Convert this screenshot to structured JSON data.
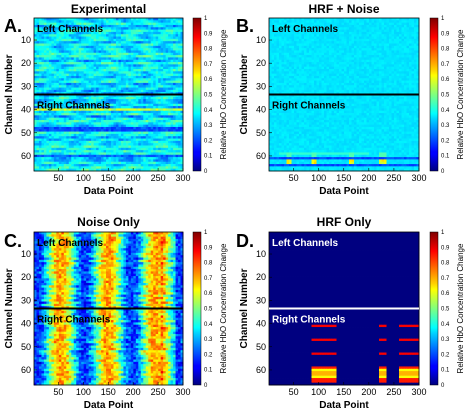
{
  "chart_data": [
    {
      "panel": "A.",
      "title": "Experimental",
      "type": "heatmap",
      "xlabel": "Data Point",
      "ylabel": "Channel Number",
      "xticks": [
        50,
        100,
        150,
        200,
        250,
        300
      ],
      "yticks": [
        10,
        20,
        30,
        40,
        50,
        60
      ],
      "xlim": [
        1,
        300
      ],
      "ylim": [
        1,
        66
      ],
      "colorbar": {
        "label": "Relative HbO Concentration Change",
        "ticks": [
          "0",
          "0.1",
          "0.2",
          "0.3",
          "0.4",
          "0.5",
          "0.6",
          "0.7",
          "0.8",
          "0.9",
          "1"
        ],
        "range": [
          0,
          1
        ]
      },
      "region_labels": [
        "Left Channels",
        "Right Channels"
      ],
      "divider_channel": 33.5,
      "divider_color": "#000000",
      "label_color": "#000000",
      "pattern": "mostly cyan-blue (~0.3-0.4) with horizontal streaks; yellow streak near channel 40; blue streaks near channels 48 and 60"
    },
    {
      "panel": "B.",
      "title": "HRF + Noise",
      "type": "heatmap",
      "xlabel": "Data Point",
      "ylabel": "Channel Number",
      "xticks": [
        50,
        100,
        150,
        200,
        250,
        300
      ],
      "yticks": [
        10,
        20,
        30,
        40,
        50,
        60
      ],
      "xlim": [
        1,
        300
      ],
      "ylim": [
        1,
        66
      ],
      "colorbar": {
        "label": "Relative HbO Concentration Change",
        "ticks": [
          "0",
          "0.1",
          "0.2",
          "0.3",
          "0.4",
          "0.5",
          "0.6",
          "0.7",
          "0.8",
          "0.9",
          "1"
        ],
        "range": [
          0,
          1
        ]
      },
      "region_labels": [
        "Left Channels",
        "Right Channels"
      ],
      "divider_channel": 33.5,
      "divider_color": "#000000",
      "label_color": "#000000",
      "pattern": "uniform cyan (~0.35); stimulus blocks near x 35-45, 85-95, 160-170, 225-235 in channels 59-64 with dark blue rows at 61 and 64"
    },
    {
      "panel": "C.",
      "title": "Noise Only",
      "type": "heatmap",
      "xlabel": "Data Point",
      "ylabel": "Channel Number",
      "xticks": [
        50,
        100,
        150,
        200,
        250,
        300
      ],
      "yticks": [
        10,
        20,
        30,
        40,
        50,
        60
      ],
      "xlim": [
        1,
        300
      ],
      "ylim": [
        1,
        66
      ],
      "colorbar": {
        "label": "Relative HbO Concentration Change",
        "ticks": [
          "0",
          "0.1",
          "0.2",
          "0.3",
          "0.4",
          "0.5",
          "0.6",
          "0.7",
          "0.8",
          "0.9",
          "1"
        ],
        "range": [
          0,
          1
        ]
      },
      "region_labels": [
        "Left Channels",
        "Right Channels"
      ],
      "divider_channel": 33.5,
      "divider_color": "#000000",
      "label_color": "#000000",
      "pattern": "periodic oscillations along x with period ~95 data points, warm peaks near x 55, 150, 245 (max at x ~260-280)"
    },
    {
      "panel": "D.",
      "title": "HRF Only",
      "type": "heatmap",
      "xlabel": "Data Point",
      "ylabel": "Channel Number",
      "xticks": [
        50,
        100,
        150,
        200,
        250,
        300
      ],
      "yticks": [
        10,
        20,
        30,
        40,
        50,
        60
      ],
      "xlim": [
        1,
        300
      ],
      "ylim": [
        1,
        66
      ],
      "colorbar": {
        "label": "Relative HbO Concentration Change",
        "ticks": [
          "0",
          "0.1",
          "0.2",
          "0.3",
          "0.4",
          "0.5",
          "0.6",
          "0.7",
          "0.8",
          "0.9",
          "1"
        ],
        "range": [
          0,
          1
        ]
      },
      "region_labels": [
        "Left Channels",
        "Right Channels"
      ],
      "divider_channel": 33.5,
      "divider_color": "#ffffff",
      "label_color": "#ffffff",
      "pattern": "dark blue background (0); HRF response blocks at x 85-135, 220-233, 260-300 in channels 41, 47, 53, 59-65 (red rows, yellow/white near 60-64)"
    }
  ]
}
